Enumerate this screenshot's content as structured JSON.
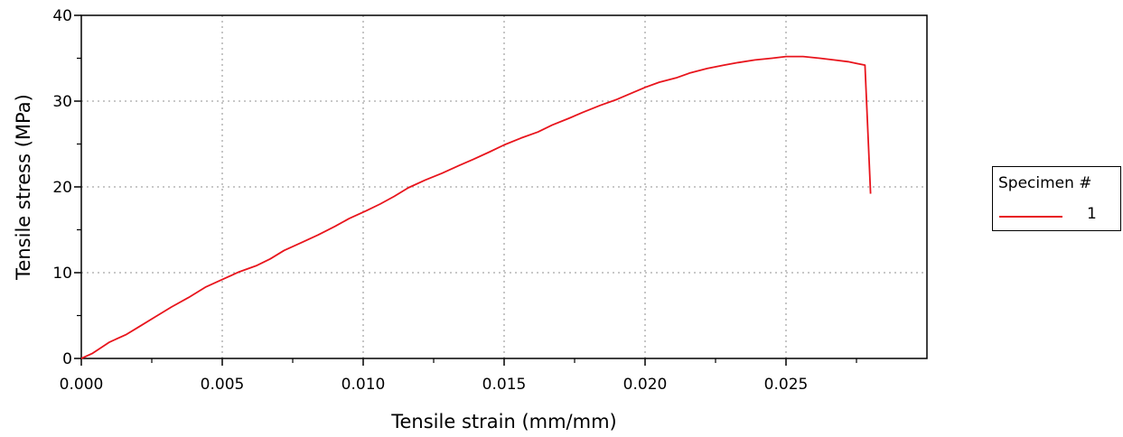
{
  "chart_data": {
    "type": "line",
    "xlabel": "Tensile strain (mm/mm)",
    "ylabel": "Tensile stress (MPa)",
    "xlim": [
      0,
      0.03
    ],
    "ylim": [
      0,
      40
    ],
    "x_ticks": [
      "0.000",
      "0.005",
      "0.010",
      "0.015",
      "0.020",
      "0.025"
    ],
    "y_ticks": [
      "0",
      "10",
      "20",
      "30",
      "40"
    ],
    "grid": true,
    "legend": {
      "title": "Specimen #",
      "placement": "right",
      "entries": [
        "1"
      ]
    },
    "series": [
      {
        "name": "1",
        "color": "#e8141c",
        "x": [
          0.0,
          0.0004,
          0.001,
          0.0016,
          0.002,
          0.0026,
          0.0032,
          0.0038,
          0.0044,
          0.005,
          0.0056,
          0.0062,
          0.0067,
          0.0072,
          0.0078,
          0.0084,
          0.009,
          0.0095,
          0.0101,
          0.0106,
          0.0111,
          0.0116,
          0.0122,
          0.0128,
          0.0134,
          0.0139,
          0.0145,
          0.015,
          0.0156,
          0.0162,
          0.0167,
          0.0173,
          0.0178,
          0.0184,
          0.019,
          0.0195,
          0.02,
          0.0205,
          0.0211,
          0.0216,
          0.0222,
          0.0228,
          0.0233,
          0.0239,
          0.0245,
          0.025,
          0.0256,
          0.0262,
          0.0267,
          0.0272,
          0.0275,
          0.0278,
          0.028
        ],
        "y": [
          0.0,
          0.6,
          1.9,
          2.8,
          3.6,
          4.8,
          6.0,
          7.1,
          8.3,
          9.2,
          10.1,
          10.8,
          11.6,
          12.6,
          13.5,
          14.4,
          15.4,
          16.3,
          17.2,
          18.0,
          18.9,
          19.9,
          20.8,
          21.6,
          22.5,
          23.2,
          24.1,
          24.9,
          25.7,
          26.4,
          27.2,
          28.0,
          28.7,
          29.5,
          30.2,
          30.9,
          31.6,
          32.2,
          32.7,
          33.3,
          33.8,
          34.2,
          34.5,
          34.8,
          35.0,
          35.2,
          35.2,
          35.0,
          34.8,
          34.6,
          34.4,
          34.2,
          19.2
        ]
      }
    ]
  }
}
